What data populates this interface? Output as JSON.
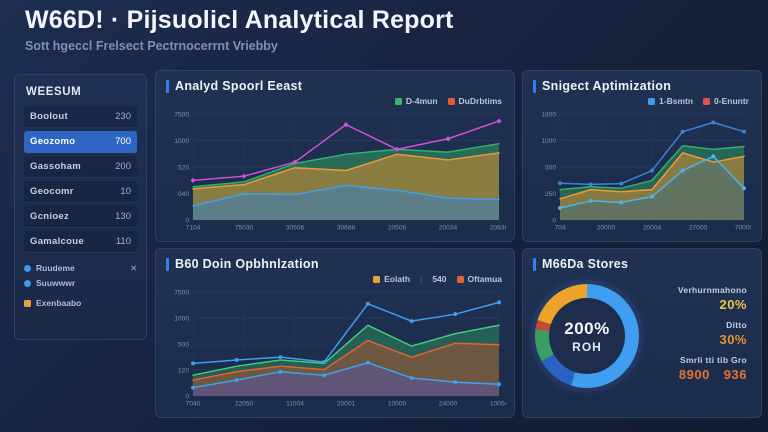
{
  "header": {
    "title": "W66D! · Pijsuolicl Analytical Report",
    "subtitle": "Sott hgeccl Frelsect Pectrnocerrnt Vriebby"
  },
  "sidebar": {
    "header": "WEESUM",
    "items": [
      {
        "label": "Boolout",
        "value": "230"
      },
      {
        "label": "Geozomo",
        "value": "700"
      },
      {
        "label": "Gassoham",
        "value": "200"
      },
      {
        "label": "Geocomr",
        "value": "10"
      },
      {
        "label": "Gcnioez",
        "value": "130"
      },
      {
        "label": "Gamalcoue",
        "value": "110"
      }
    ],
    "legend": [
      {
        "label": "Ruudeme",
        "color": "#3d9be9",
        "shape": "circle"
      },
      {
        "label": "Suuwwwr",
        "color": "#3d9be9",
        "shape": "circle"
      },
      {
        "label": "Exenbaabo",
        "color": "#e8a23a",
        "shape": "square"
      }
    ]
  },
  "panels": [
    {
      "title": "Analyd Spoorl Eeast",
      "legend": [
        {
          "label": "D-4mun",
          "color": "#3bb567"
        },
        {
          "label": "DuDrbtims",
          "color": "#e05c3a"
        }
      ]
    },
    {
      "title": "Snigect Aptimization",
      "legend": [
        {
          "label": "1-Bsmtn",
          "color": "#3d9be9"
        },
        {
          "label": "0-Enuntr",
          "color": "#d9534f"
        }
      ]
    },
    {
      "title": "B60 Doin Opbhnlzation",
      "legend": [
        {
          "label": "Eolath",
          "color": "#e8a23a"
        },
        {
          "label": "540"
        },
        {
          "label": "Oftamua",
          "color": "#e0622e"
        }
      ]
    },
    {
      "title": "M66Da Stores",
      "stats": [
        {
          "label": "Verhurnmahono",
          "value": "20%",
          "color": "#e7c84a"
        },
        {
          "label": "Ditto",
          "value": "30%",
          "color": "#e8922e"
        },
        {
          "label": "Smrli tti tib Gro",
          "value": "8900",
          "value2": "936",
          "color": "#e8702e"
        }
      ]
    }
  ],
  "chart_data": [
    {
      "type": "area",
      "title": "Analyd Spoorl Eeast",
      "ylim": [
        0,
        1500
      ],
      "y_ticks": [
        "7500",
        "1000",
        "520",
        "040",
        "0"
      ],
      "x_ticks": [
        "7104",
        "75030",
        "30506",
        "30688",
        "20506",
        "20034",
        "20636"
      ],
      "series": [
        {
          "name": "green-area",
          "color": "#33b06e",
          "fill": "#2f9e62",
          "fill_opacity": 0.55,
          "values": [
            470,
            540,
            800,
            930,
            1000,
            960,
            1080
          ]
        },
        {
          "name": "orange-area",
          "color": "#f09a32",
          "fill": "#d98a2e",
          "fill_opacity": 0.55,
          "values": [
            440,
            500,
            740,
            700,
            930,
            850,
            950
          ]
        },
        {
          "name": "blue-area",
          "color": "#41a0ee",
          "fill": "#2f7fd0",
          "fill_opacity": 0.5,
          "values": [
            200,
            370,
            360,
            490,
            420,
            310,
            290
          ]
        },
        {
          "name": "magenta-line",
          "color": "#d052d6",
          "marker": "diamond",
          "values": [
            560,
            620,
            820,
            1350,
            1000,
            1150,
            1400
          ]
        }
      ]
    },
    {
      "type": "area",
      "title": "Snigect Aptimization",
      "ylim": [
        0,
        1500
      ],
      "y_ticks": [
        "1800",
        "1000",
        "500",
        "250",
        "0"
      ],
      "x_ticks": [
        "704",
        "20000",
        "20004",
        "27000",
        "70000"
      ],
      "series": [
        {
          "name": "green-area",
          "color": "#33b06e",
          "fill": "#2f9e62",
          "fill_opacity": 0.5,
          "values": [
            430,
            470,
            450,
            560,
            1050,
            1000,
            1040
          ]
        },
        {
          "name": "orange-area",
          "color": "#f09a32",
          "fill": "#d98a2e",
          "fill_opacity": 0.55,
          "values": [
            300,
            430,
            400,
            430,
            950,
            820,
            900
          ]
        },
        {
          "name": "lightblue-line",
          "color": "#49b4ee",
          "fill": "#41707c",
          "fill_opacity": 0.55,
          "marker": "circle",
          "values": [
            170,
            270,
            250,
            330,
            700,
            900,
            450
          ]
        },
        {
          "name": "darkblue-line",
          "color": "#3b82d8",
          "marker": "circle",
          "values": [
            520,
            505,
            515,
            700,
            1250,
            1380,
            1250
          ]
        }
      ]
    },
    {
      "type": "area",
      "title": "B60 Doin Opbhnlzation",
      "ylim": [
        0,
        1500
      ],
      "y_ticks": [
        "7500",
        "1000",
        "500",
        "120",
        "0"
      ],
      "x_ticks": [
        "7040",
        "22050",
        "11004",
        "20001",
        "10000",
        "24000",
        "10004"
      ],
      "series": [
        {
          "name": "green-area",
          "color": "#46c87a",
          "fill": "#2f9e62",
          "fill_opacity": 0.45,
          "values": [
            300,
            430,
            520,
            470,
            1020,
            720,
            900,
            1020
          ]
        },
        {
          "name": "orangered-area",
          "color": "#e8622e",
          "fill": "#b5502c",
          "fill_opacity": 0.5,
          "values": [
            230,
            350,
            430,
            380,
            800,
            560,
            760,
            740
          ]
        },
        {
          "name": "purple-area",
          "color": "#41a0ee",
          "fill": "#4f55b8",
          "fill_opacity": 0.45,
          "marker": "circle",
          "values": [
            120,
            230,
            350,
            300,
            480,
            260,
            200,
            170
          ]
        },
        {
          "name": "blue-line",
          "color": "#3f9ef0",
          "marker": "circle",
          "values": [
            470,
            520,
            560,
            490,
            1330,
            1080,
            1180,
            1350
          ]
        }
      ]
    },
    {
      "type": "pie",
      "title": "M66Da Stores",
      "center_value": "200%",
      "center_label": "ROH",
      "legend_position": "none",
      "segments": [
        {
          "label": "light-blue",
          "color": "#3f9ef0",
          "value": 55
        },
        {
          "label": "dark-blue",
          "color": "#2a62c2",
          "value": 12
        },
        {
          "label": "green",
          "color": "#3a9e63",
          "value": 10
        },
        {
          "label": "red",
          "color": "#c04a38",
          "value": 3
        },
        {
          "label": "orange",
          "color": "#eda229",
          "value": 20
        }
      ]
    }
  ]
}
